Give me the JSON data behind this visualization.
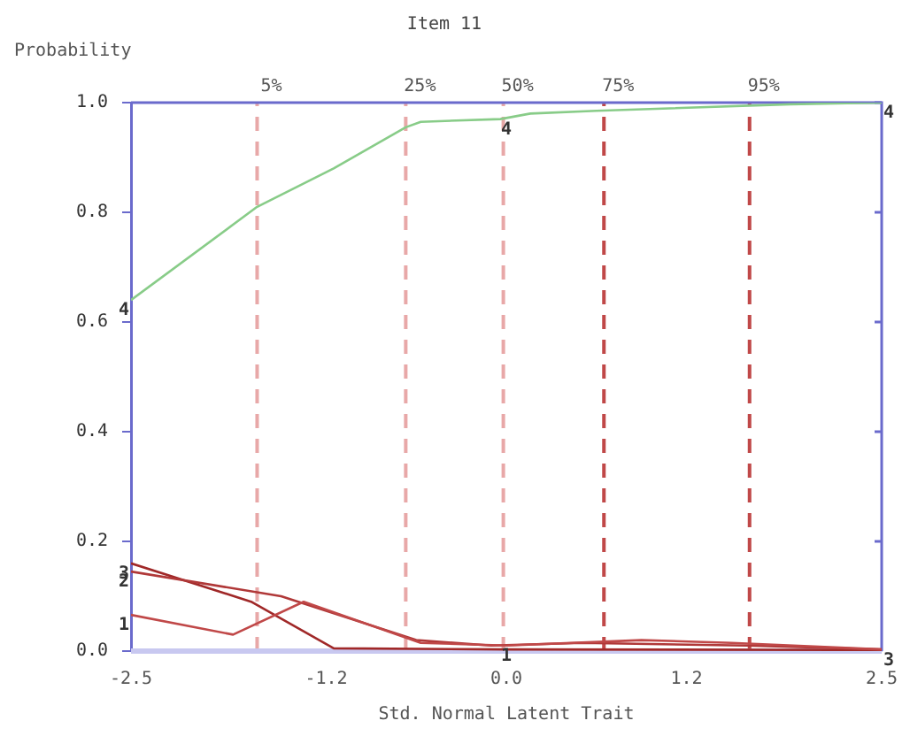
{
  "chart_data": {
    "type": "line",
    "title": "Item 11",
    "xlabel": "Std. Normal Latent Trait",
    "ylabel": "Probability",
    "series": [
      {
        "color": "#c04848",
        "x": [
          -2.5,
          -1.82,
          -1.35,
          -0.57,
          0.0,
          0.9,
          1.5,
          2.5
        ],
        "values": [
          0.066,
          0.03,
          0.09,
          0.015,
          0.01,
          0.02,
          0.015,
          0.003
        ]
      },
      {
        "color": "#b03838",
        "x": [
          -2.5,
          -1.5,
          -0.6,
          -0.1,
          0.5,
          1.6,
          2.5
        ],
        "values": [
          0.145,
          0.1,
          0.02,
          0.01,
          0.015,
          0.01,
          0.003
        ]
      },
      {
        "color": "#a02828",
        "x": [
          -2.5,
          -1.7,
          -1.15,
          0.0,
          2.5
        ],
        "values": [
          0.16,
          0.09,
          0.005,
          0.003,
          0.002
        ]
      },
      {
        "color": "#88cc88",
        "x": [
          -2.5,
          -1.66,
          -1.15,
          -0.67,
          -0.57,
          -0.04,
          0.16,
          0.6,
          1.89,
          2.5
        ],
        "values": [
          0.64,
          0.81,
          0.88,
          0.955,
          0.965,
          0.97,
          0.98,
          0.985,
          0.997,
          1.0
        ]
      }
    ],
    "xlim": [
      -2.5,
      2.5
    ],
    "xticks": [
      -2.5,
      -1.2,
      {
        "value": 0,
        "label": "0.0"
      },
      1.2,
      2.5
    ],
    "ylim": [
      0,
      1
    ],
    "yticks": [
      {
        "value": 0,
        "label": "0.0"
      },
      0.2,
      0.4,
      0.6,
      0.8,
      {
        "value": 1,
        "label": "1.0"
      }
    ],
    "ref_lines": [
      {
        "axis": "x",
        "value": -1.66,
        "color": "#e8a8a8",
        "line_style": "dashed"
      },
      {
        "axis": "x",
        "value": -0.67,
        "color": "#e8a8a8",
        "line_style": "dashed"
      },
      {
        "axis": "x",
        "value": -0.02,
        "color": "#e8a8a8",
        "line_style": "dashed"
      },
      {
        "axis": "x",
        "value": 0.65,
        "color": "#c04848",
        "line_style": "dashed"
      },
      {
        "axis": "x",
        "value": 1.62,
        "color": "#c04848",
        "line_style": "dashed"
      }
    ],
    "annotations": [
      {
        "text": "5%",
        "x": -1.66,
        "y": 1.0
      },
      {
        "text": "25%",
        "x": -0.67,
        "y": 1.0
      },
      {
        "text": "50%",
        "x": -0.02,
        "y": 1.0
      },
      {
        "text": "75%",
        "x": 0.65,
        "y": 1.0
      },
      {
        "text": "95%",
        "x": 1.62,
        "y": 1.0
      },
      {
        "text": "1",
        "x": -2.5,
        "y": 0.066
      },
      {
        "text": "2",
        "x": -2.5,
        "y": 0.145
      },
      {
        "text": "3",
        "x": -2.5,
        "y": 0.16
      },
      {
        "text": "4",
        "x": -2.5,
        "y": 0.64
      },
      {
        "text": "4",
        "x": 0.0,
        "y": 0.97
      },
      {
        "text": "1",
        "x": 0.0,
        "y": 0.01
      },
      {
        "text": "4",
        "x": 2.5,
        "y": 1.0
      },
      {
        "text": "3",
        "x": 2.5,
        "y": 0.002
      }
    ],
    "grid": false,
    "legend": false,
    "marker": "none",
    "line_style": "solid"
  }
}
